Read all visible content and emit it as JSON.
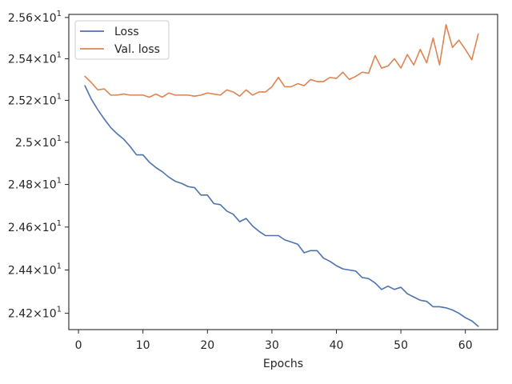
{
  "chart_data": {
    "type": "line",
    "title": "",
    "xlabel": "Epochs",
    "ylabel": "",
    "xlim": [
      -1.5,
      65.0
    ],
    "ylim": [
      24.125,
      25.615
    ],
    "yscale": "log",
    "grid": false,
    "legend_position": "top-left",
    "x_ticks": [
      0,
      10,
      20,
      30,
      40,
      50,
      60
    ],
    "x_tick_labels": [
      "0",
      "10",
      "20",
      "30",
      "40",
      "50",
      "60"
    ],
    "y_ticks": [
      {
        "value": 25.6,
        "mantissa": "2.56",
        "exponent": "1"
      },
      {
        "value": 25.4,
        "mantissa": "2.54",
        "exponent": "1"
      },
      {
        "value": 25.2,
        "mantissa": "2.52",
        "exponent": "1"
      },
      {
        "value": 25.0,
        "mantissa": "2.5",
        "exponent": "1"
      },
      {
        "value": 24.8,
        "mantissa": "2.48",
        "exponent": "1"
      },
      {
        "value": 24.6,
        "mantissa": "2.46",
        "exponent": "1"
      },
      {
        "value": 24.4,
        "mantissa": "2.44",
        "exponent": "1"
      },
      {
        "value": 24.2,
        "mantissa": "2.42",
        "exponent": "1"
      }
    ],
    "y_tick_times": "×",
    "y_tick_base": "10",
    "series": [
      {
        "name": "Loss",
        "color": "#4c72b0",
        "x": [
          1,
          2,
          3,
          4,
          5,
          6,
          7,
          8,
          9,
          10,
          11,
          12,
          13,
          14,
          15,
          16,
          17,
          18,
          19,
          20,
          21,
          22,
          23,
          24,
          25,
          26,
          27,
          28,
          29,
          30,
          31,
          32,
          33,
          34,
          35,
          36,
          37,
          38,
          39,
          40,
          41,
          42,
          43,
          44,
          45,
          46,
          47,
          48,
          49,
          50,
          51,
          52,
          53,
          54,
          55,
          56,
          57,
          58,
          59,
          60,
          61,
          62
        ],
        "values": [
          25.27,
          25.205,
          25.155,
          25.11,
          25.07,
          25.04,
          25.015,
          24.98,
          24.94,
          24.94,
          24.905,
          24.88,
          24.86,
          24.835,
          24.815,
          24.805,
          24.79,
          24.785,
          24.75,
          24.75,
          24.71,
          24.705,
          24.675,
          24.66,
          24.625,
          24.64,
          24.605,
          24.58,
          24.56,
          24.56,
          24.56,
          24.54,
          24.53,
          24.52,
          24.48,
          24.49,
          24.49,
          24.455,
          24.44,
          24.42,
          24.405,
          24.4,
          24.395,
          24.365,
          24.36,
          24.34,
          24.31,
          24.325,
          24.31,
          24.32,
          24.29,
          24.275,
          24.26,
          24.255,
          24.23,
          24.23,
          24.225,
          24.215,
          24.2,
          24.18,
          24.165,
          24.14
        ]
      },
      {
        "name": "Val. loss",
        "color": "#dd8452",
        "x": [
          1,
          2,
          3,
          4,
          5,
          6,
          7,
          8,
          9,
          10,
          11,
          12,
          13,
          14,
          15,
          16,
          17,
          18,
          19,
          20,
          21,
          22,
          23,
          24,
          25,
          26,
          27,
          28,
          29,
          30,
          31,
          32,
          33,
          34,
          35,
          36,
          37,
          38,
          39,
          40,
          41,
          42,
          43,
          44,
          45,
          46,
          47,
          48,
          49,
          50,
          51,
          52,
          53,
          54,
          55,
          56,
          57,
          58,
          59,
          60,
          61,
          62
        ],
        "values": [
          25.315,
          25.285,
          25.25,
          25.255,
          25.225,
          25.225,
          25.23,
          25.225,
          25.225,
          25.225,
          25.215,
          25.23,
          25.215,
          25.235,
          25.225,
          25.225,
          25.225,
          25.22,
          25.225,
          25.235,
          25.23,
          25.225,
          25.25,
          25.24,
          25.22,
          25.25,
          25.225,
          25.24,
          25.24,
          25.265,
          25.31,
          25.265,
          25.265,
          25.28,
          25.27,
          25.3,
          25.29,
          25.29,
          25.31,
          25.305,
          25.335,
          25.3,
          25.315,
          25.335,
          25.33,
          25.415,
          25.355,
          25.365,
          25.4,
          25.355,
          25.42,
          25.37,
          25.445,
          25.38,
          25.5,
          25.37,
          25.565,
          25.455,
          25.49,
          25.445,
          25.395,
          25.52
        ]
      }
    ]
  }
}
